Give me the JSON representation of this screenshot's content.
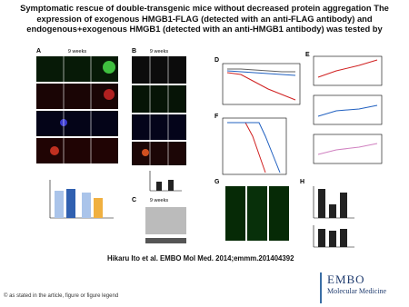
{
  "header": {
    "title": "Symptomatic rescue of double-transgenic mice without decreased protein aggregation The expression of exogenous HMGB1-FLAG (detected with an anti-FLAG antibody) and endogenous+exogenous HMGB1 (detected with an anti-HMGB1 antibody) was tested by"
  },
  "figure": {
    "panels": [
      "A",
      "B",
      "C",
      "D",
      "E",
      "F",
      "G",
      "H"
    ],
    "time_label": "9 weeks"
  },
  "citation": "Hikaru Ito et al. EMBO Mol Med. 2014;emmm.201404392",
  "footer": "© as stated in the article, figure or figure legend",
  "logo": {
    "line1": "EMBO",
    "line2": "Molecular Medicine"
  }
}
